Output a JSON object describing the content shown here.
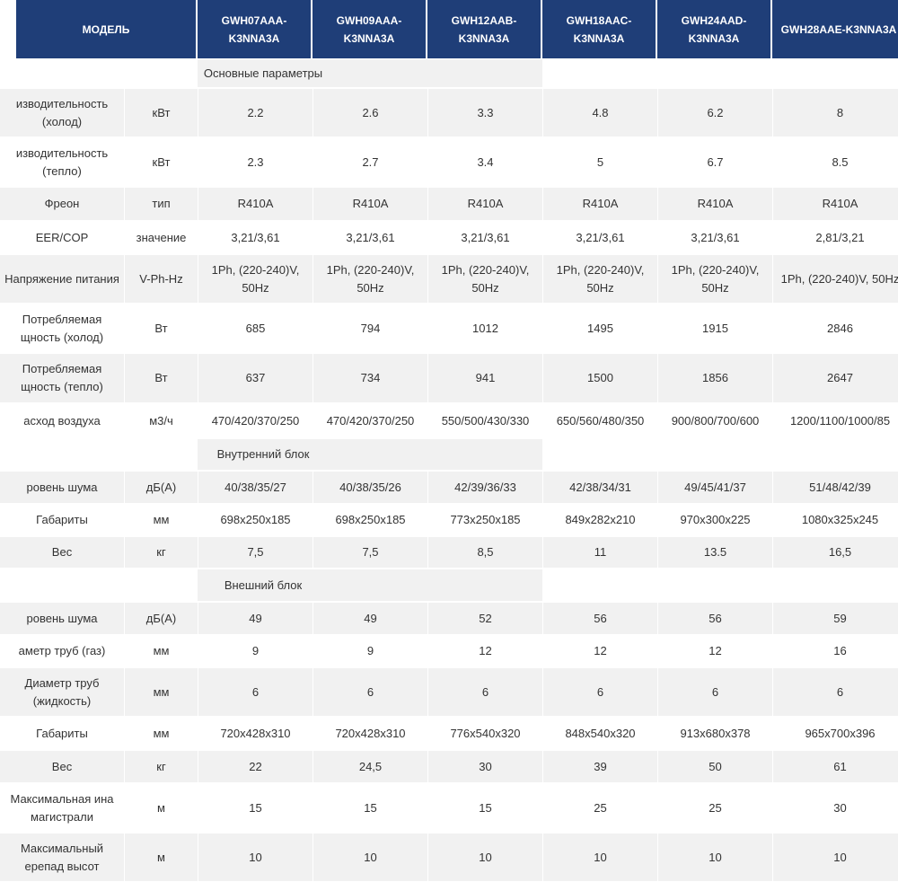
{
  "header": {
    "model_label": "МОДЕЛЬ",
    "models": [
      "GWH07AAA-K3NNA3A",
      "GWH09AAA-K3NNA3A",
      "GWH12AAB-K3NNA3A",
      "GWH18AAC-K3NNA3A",
      "GWH24AAD-K3NNA3A",
      "GWH28AAE-K3NNA3A"
    ]
  },
  "rows": [
    {
      "section": "Основные параметры"
    },
    {
      "label": "изводительность (холод)",
      "unit": "кВт",
      "values": [
        "2.2",
        "2.6",
        "3.3",
        "4.8",
        "6.2",
        "8"
      ]
    },
    {
      "label": "изводительность (тепло)",
      "unit": "кВт",
      "values": [
        "2.3",
        "2.7",
        "3.4",
        "5",
        "6.7",
        "8.5"
      ]
    },
    {
      "label": "Фреон",
      "unit": "тип",
      "values": [
        "R410A",
        "R410A",
        "R410A",
        "R410A",
        "R410A",
        "R410A"
      ]
    },
    {
      "label": "EER/COP",
      "unit": "значение",
      "values": [
        "3,21/3,61",
        "3,21/3,61",
        "3,21/3,61",
        "3,21/3,61",
        "3,21/3,61",
        "2,81/3,21"
      ]
    },
    {
      "label": "Напряжение питания",
      "unit": "V-Ph-Hz",
      "values": [
        "1Ph, (220-240)V, 50Hz",
        "1Ph, (220-240)V, 50Hz",
        "1Ph, (220-240)V, 50Hz",
        "1Ph, (220-240)V, 50Hz",
        "1Ph, (220-240)V, 50Hz",
        "1Ph, (220-240)V, 50Hz"
      ]
    },
    {
      "label": "Потребляемая щность (холод)",
      "unit": "Вт",
      "values": [
        "685",
        "794",
        "1012",
        "1495",
        "1915",
        "2846"
      ]
    },
    {
      "label": "Потребляемая щность (тепло)",
      "unit": "Вт",
      "values": [
        "637",
        "734",
        "941",
        "1500",
        "1856",
        "2647"
      ]
    },
    {
      "label": "асход воздуха",
      "unit": "м3/ч",
      "values": [
        "470/420/370/250",
        "470/420/370/250",
        "550/500/430/330",
        "650/560/480/350",
        "900/800/700/600",
        "1200/1100/1000/85"
      ]
    },
    {
      "section": "Внутренний блок"
    },
    {
      "label": "ровень шума",
      "unit": "дБ(А)",
      "values": [
        "40/38/35/27",
        "40/38/35/26",
        "42/39/36/33",
        "42/38/34/31",
        "49/45/41/37",
        "51/48/42/39"
      ]
    },
    {
      "label": "Габариты",
      "unit": "мм",
      "values": [
        "698x250x185",
        "698x250x185",
        "773x250x185",
        "849x282x210",
        "970x300x225",
        "1080x325x245"
      ]
    },
    {
      "label": "Вес",
      "unit": "кг",
      "values": [
        "7,5",
        "7,5",
        "8,5",
        "11",
        "13.5",
        "16,5"
      ]
    },
    {
      "section": "Внешний блок"
    },
    {
      "label": "ровень шума",
      "unit": "дБ(А)",
      "values": [
        "49",
        "49",
        "52",
        "56",
        "56",
        "59"
      ]
    },
    {
      "label": "аметр труб (газ)",
      "unit": "мм",
      "values": [
        "9",
        "9",
        "12",
        "12",
        "12",
        "16"
      ]
    },
    {
      "label": "Диаметр труб (жидкость)",
      "unit": "мм",
      "values": [
        "6",
        "6",
        "6",
        "6",
        "6",
        "6"
      ]
    },
    {
      "label": "Габариты",
      "unit": "мм",
      "values": [
        "720x428x310",
        "720x428x310",
        "776x540x320",
        "848x540x320",
        "913x680x378",
        "965x700x396"
      ]
    },
    {
      "label": "Вес",
      "unit": "кг",
      "values": [
        "22",
        "24,5",
        "30",
        "39",
        "50",
        "61"
      ]
    },
    {
      "label": "Максимальная ина магистрали",
      "unit": "м",
      "values": [
        "15",
        "15",
        "15",
        "25",
        "25",
        "30"
      ]
    },
    {
      "label": "Максимальный ерепад высот",
      "unit": "м",
      "values": [
        "10",
        "10",
        "10",
        "10",
        "10",
        "10"
      ]
    }
  ]
}
